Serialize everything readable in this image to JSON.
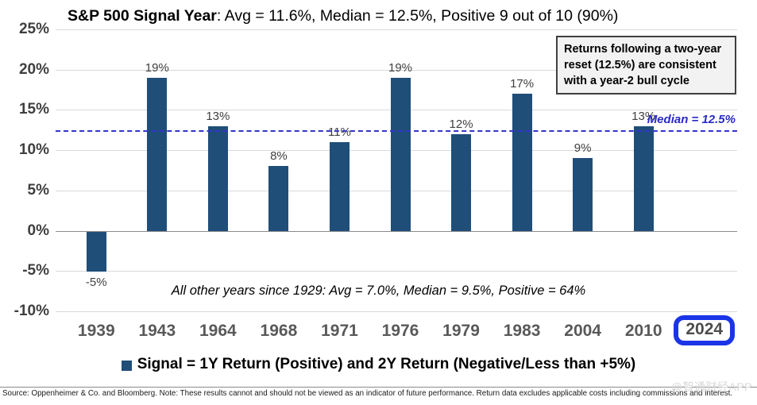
{
  "title": {
    "bold": "S&P 500 Signal Year",
    "rest": ": Avg = 11.6%, Median = 12.5%, Positive 9 out of 10 (90%)"
  },
  "annotation_box": {
    "text": "Returns following a two-year reset (12.5%) are consistent with a year-2 bull cycle"
  },
  "median_label": "Median = 12.5%",
  "other_years_note": "All other years since 1929:  Avg = 7.0%, Median = 9.5%, Positive = 64%",
  "legend": {
    "label": "Signal = 1Y Return (Positive) and 2Y Return (Negative/Less than +5%)",
    "swatch_color": "#1f4e79"
  },
  "footer": {
    "source": "Source: Oppenheimer & Co. and Bloomberg. Note: These results cannot and should not be viewed as an indicator of future performance. Return data excludes applicable costs including commissions and interest."
  },
  "watermark": "@智通财经APP",
  "chart_data": {
    "type": "bar",
    "title": "S&P 500 Signal Year: Avg = 11.6%, Median = 12.5%, Positive 9 out of 10 (90%)",
    "categories": [
      "1939",
      "1943",
      "1964",
      "1968",
      "1971",
      "1976",
      "1979",
      "1983",
      "2004",
      "2010",
      "2024"
    ],
    "values": [
      -5,
      19,
      13,
      8,
      11,
      19,
      12,
      17,
      9,
      13,
      null
    ],
    "value_labels": [
      "-5%",
      "19%",
      "13%",
      "8%",
      "11%",
      "19%",
      "12%",
      "17%",
      "9%",
      "13%",
      null
    ],
    "highlighted_category": "2024",
    "median_value": 12.5,
    "ylim": [
      -10,
      25
    ],
    "ytick_step": 5,
    "ytick_labels": [
      "25%",
      "20%",
      "15%",
      "10%",
      "5%",
      "0%",
      "-5%",
      "-10%"
    ],
    "grid": true,
    "bar_color": "#1f4e79",
    "median_color": "#3434ce",
    "highlight_color": "#1a35e8",
    "legend_position": "bottom",
    "xlabel": "",
    "ylabel": ""
  }
}
